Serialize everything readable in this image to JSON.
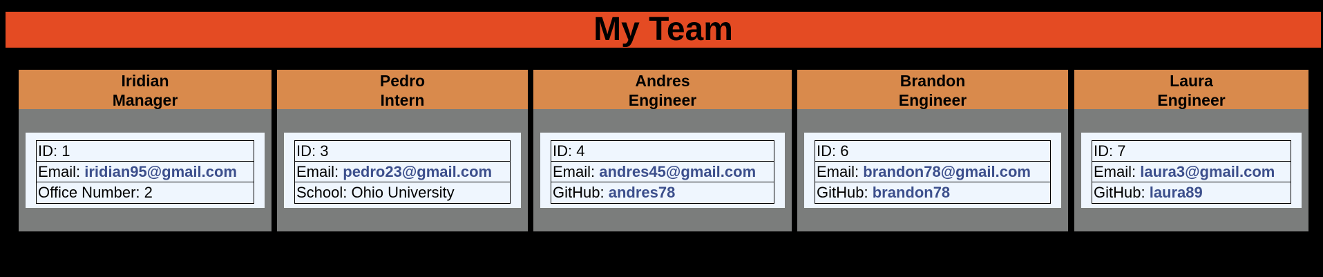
{
  "page": {
    "title": "My Team"
  },
  "colors": {
    "banner": "#e44b23",
    "card_header": "#d98a4c",
    "card_bg": "#7b7d7c",
    "info_bg": "#eff6fe",
    "link": "#3c4f8c"
  },
  "team": [
    {
      "name": "Iridian",
      "role": "Manager",
      "id_label": "ID: ",
      "id": "1",
      "email_label": "Email: ",
      "email": "iridian95@gmail.com",
      "extra_label": "Office Number: ",
      "extra_value": "2"
    },
    {
      "name": "Pedro",
      "role": "Intern",
      "id_label": "ID: ",
      "id": "3",
      "email_label": "Email: ",
      "email": "pedro23@gmail.com",
      "extra_label": "School: ",
      "extra_value": "Ohio University"
    },
    {
      "name": "Andres",
      "role": "Engineer",
      "id_label": "ID: ",
      "id": "4",
      "email_label": "Email: ",
      "email": "andres45@gmail.com",
      "extra_label": "GitHub: ",
      "extra_value": "andres78"
    },
    {
      "name": "Brandon",
      "role": "Engineer",
      "id_label": "ID: ",
      "id": "6",
      "email_label": "Email: ",
      "email": "brandon78@gmail.com",
      "extra_label": "GitHub: ",
      "extra_value": "brandon78"
    },
    {
      "name": "Laura",
      "role": "Engineer",
      "id_label": "ID: ",
      "id": "7",
      "email_label": "Email: ",
      "email": "laura3@gmail.com",
      "extra_label": "GitHub: ",
      "extra_value": "laura89"
    }
  ]
}
